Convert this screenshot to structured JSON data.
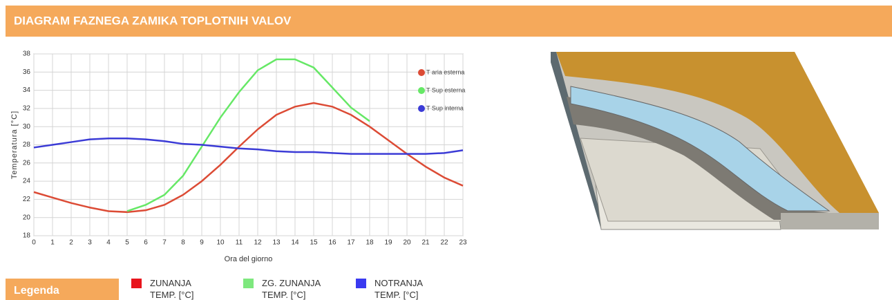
{
  "header": {
    "title": "DIAGRAM FAZNEGA ZAMIKA TOPLOTNIH VALOV"
  },
  "chart_data": {
    "type": "line",
    "ylabel": "Temperatura [°C]",
    "xlabel": "Ora del giorno",
    "x": [
      0,
      1,
      2,
      3,
      4,
      5,
      6,
      7,
      8,
      9,
      10,
      11,
      12,
      13,
      14,
      15,
      16,
      17,
      18,
      19,
      20,
      21,
      22,
      23
    ],
    "xlim": [
      0,
      23
    ],
    "xticks": [
      0,
      1,
      2,
      3,
      4,
      5,
      6,
      7,
      8,
      9,
      10,
      11,
      12,
      13,
      14,
      15,
      16,
      17,
      18,
      19,
      20,
      21,
      22,
      23
    ],
    "ylim": [
      18,
      38
    ],
    "yticks": [
      18,
      20,
      22,
      24,
      26,
      28,
      30,
      32,
      34,
      36,
      38
    ],
    "grid": true,
    "series": [
      {
        "name": "T aria esterna",
        "color": "#dc4b35",
        "values": [
          22.8,
          22.2,
          21.6,
          21.1,
          20.7,
          20.6,
          20.8,
          21.4,
          22.5,
          24,
          25.8,
          27.8,
          29.7,
          31.3,
          32.2,
          32.6,
          32.2,
          31.3,
          30,
          28.5,
          27,
          25.6,
          24.4,
          23.5
        ]
      },
      {
        "name": "T Sup esterna",
        "color": "#66e866",
        "values": [
          null,
          null,
          null,
          null,
          null,
          20.7,
          21.4,
          22.5,
          24.6,
          27.8,
          31,
          33.8,
          36.2,
          37.4,
          37.4,
          36.5,
          34.3,
          32.1,
          30.6,
          null,
          null,
          null,
          null,
          null
        ]
      },
      {
        "name": "T Sup interna",
        "color": "#3b3bd6",
        "values": [
          27.7,
          28,
          28.3,
          28.6,
          28.7,
          28.7,
          28.6,
          28.4,
          28.1,
          28,
          27.8,
          27.6,
          27.5,
          27.3,
          27.2,
          27.2,
          27.1,
          27,
          27,
          27,
          27,
          27,
          27.1,
          27.4
        ]
      }
    ]
  },
  "legend": {
    "title": "Legenda",
    "items": [
      {
        "label": "ZUNANJA TEMP. [°C]",
        "color": "#e8141c"
      },
      {
        "label": "ZG. ZUNANJA TEMP. [°C]",
        "color": "#7ee87e"
      },
      {
        "label": "NOTRANJA TEMP. [°C]",
        "color": "#3a3af0"
      }
    ]
  }
}
